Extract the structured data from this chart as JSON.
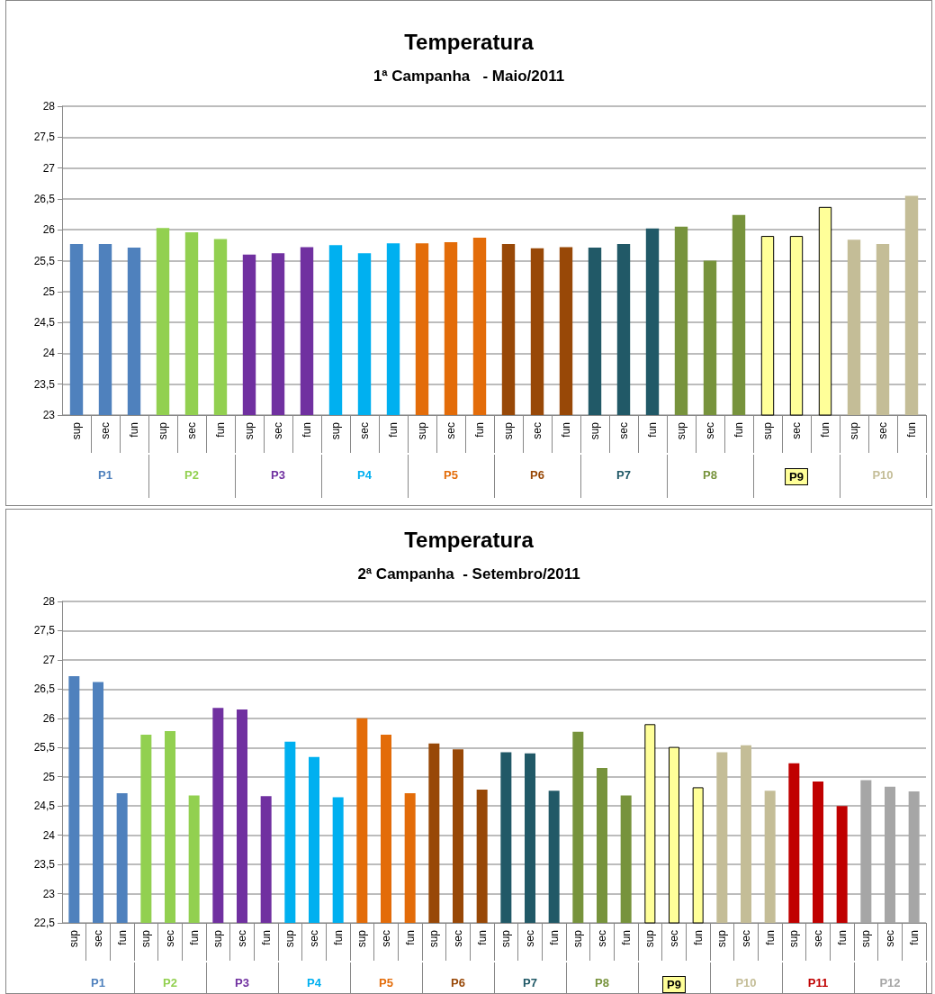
{
  "chart_data": [
    {
      "type": "bar",
      "title": "Temperatura",
      "subtitle": "1ª Campanha   - Maio/2011",
      "categories": [
        "sup",
        "sec",
        "fun",
        "sup",
        "sec",
        "fun",
        "sup",
        "sec",
        "fun",
        "sup",
        "sec",
        "fun",
        "sup",
        "sec",
        "fun",
        "sup",
        "sec",
        "fun",
        "sup",
        "sec",
        "fun",
        "sup",
        "sec",
        "fun",
        "sup",
        "sec",
        "fun",
        "sup",
        "sec",
        "fun"
      ],
      "series": [
        {
          "name": "P1",
          "color": "#4f81bd",
          "values": [
            25.77,
            25.77,
            25.71,
            null,
            null,
            null,
            null,
            null,
            null,
            null,
            null,
            null,
            null,
            null,
            null,
            null,
            null,
            null,
            null,
            null,
            null,
            null,
            null,
            null,
            null,
            null,
            null,
            null,
            null,
            null
          ]
        },
        {
          "name": "P2",
          "color": "#92d050",
          "values": [
            null,
            null,
            null,
            26.03,
            25.96,
            25.85,
            null,
            null,
            null,
            null,
            null,
            null,
            null,
            null,
            null,
            null,
            null,
            null,
            null,
            null,
            null,
            null,
            null,
            null,
            null,
            null,
            null,
            null,
            null,
            null
          ]
        },
        {
          "name": "P3",
          "color": "#7030a0",
          "values": [
            null,
            null,
            null,
            null,
            null,
            null,
            25.6,
            25.62,
            25.72,
            null,
            null,
            null,
            null,
            null,
            null,
            null,
            null,
            null,
            null,
            null,
            null,
            null,
            null,
            null,
            null,
            null,
            null,
            null,
            null,
            null
          ]
        },
        {
          "name": "P4",
          "color": "#00b0f0",
          "values": [
            null,
            null,
            null,
            null,
            null,
            null,
            null,
            null,
            null,
            25.75,
            25.62,
            25.78,
            null,
            null,
            null,
            null,
            null,
            null,
            null,
            null,
            null,
            null,
            null,
            null,
            null,
            null,
            null,
            null,
            null,
            null
          ]
        },
        {
          "name": "P5",
          "color": "#e36c09",
          "values": [
            null,
            null,
            null,
            null,
            null,
            null,
            null,
            null,
            null,
            null,
            null,
            null,
            25.78,
            25.8,
            25.87,
            null,
            null,
            null,
            null,
            null,
            null,
            null,
            null,
            null,
            null,
            null,
            null,
            null,
            null,
            null
          ]
        },
        {
          "name": "P6",
          "color": "#984807",
          "values": [
            null,
            null,
            null,
            null,
            null,
            null,
            null,
            null,
            null,
            null,
            null,
            null,
            null,
            null,
            null,
            25.77,
            25.7,
            25.72,
            null,
            null,
            null,
            null,
            null,
            null,
            null,
            null,
            null,
            null,
            null,
            null
          ]
        },
        {
          "name": "P7",
          "color": "#215967",
          "values": [
            null,
            null,
            null,
            null,
            null,
            null,
            null,
            null,
            null,
            null,
            null,
            null,
            null,
            null,
            null,
            null,
            null,
            null,
            25.71,
            25.77,
            26.02,
            null,
            null,
            null,
            null,
            null,
            null,
            null,
            null,
            null
          ]
        },
        {
          "name": "P8",
          "color": "#77933c",
          "values": [
            null,
            null,
            null,
            null,
            null,
            null,
            null,
            null,
            null,
            null,
            null,
            null,
            null,
            null,
            null,
            null,
            null,
            null,
            null,
            null,
            null,
            26.05,
            25.5,
            26.24,
            null,
            null,
            null,
            null,
            null,
            null
          ]
        },
        {
          "name": "P9",
          "color": "#ffff99",
          "values": [
            null,
            null,
            null,
            null,
            null,
            null,
            null,
            null,
            null,
            null,
            null,
            null,
            null,
            null,
            null,
            null,
            null,
            null,
            null,
            null,
            null,
            null,
            null,
            null,
            25.9,
            25.9,
            26.37,
            null,
            null,
            null
          ]
        },
        {
          "name": "P10",
          "color": "#c4bd97",
          "values": [
            null,
            null,
            null,
            null,
            null,
            null,
            null,
            null,
            null,
            null,
            null,
            null,
            null,
            null,
            null,
            null,
            null,
            null,
            null,
            null,
            null,
            null,
            null,
            null,
            null,
            null,
            null,
            25.84,
            25.77,
            26.55
          ]
        }
      ],
      "ylim": [
        23,
        28
      ],
      "yticks": [
        23,
        {
          "value": 23.5,
          "label": "23,5"
        },
        24,
        {
          "value": 24.5,
          "label": "24,5"
        },
        25,
        {
          "value": 25.5,
          "label": "25,5"
        },
        26,
        {
          "value": 26.5,
          "label": "26,5"
        },
        27,
        {
          "value": 27.5,
          "label": "27,5"
        },
        28
      ],
      "grid": "y",
      "legend": false
    },
    {
      "type": "bar",
      "title": "Temperatura",
      "subtitle": "2ª Campanha  - Setembro/2011",
      "categories": [
        "sup",
        "sec",
        "fun",
        "sup",
        "sec",
        "fun",
        "sup",
        "sec",
        "fun",
        "sup",
        "sec",
        "fun",
        "sup",
        "sec",
        "fun",
        "sup",
        "sec",
        "fun",
        "sup",
        "sec",
        "fun",
        "sup",
        "sec",
        "fun",
        "sup",
        "sec",
        "fun",
        "sup",
        "sec",
        "fun",
        "sup",
        "sec",
        "fun",
        "sup",
        "sec",
        "fun"
      ],
      "series": [
        {
          "name": "P1",
          "color": "#4f81bd",
          "values": [
            26.72,
            26.62,
            24.72,
            null,
            null,
            null,
            null,
            null,
            null,
            null,
            null,
            null,
            null,
            null,
            null,
            null,
            null,
            null,
            null,
            null,
            null,
            null,
            null,
            null,
            null,
            null,
            null,
            null,
            null,
            null,
            null,
            null,
            null,
            null,
            null,
            null
          ]
        },
        {
          "name": "P2",
          "color": "#92d050",
          "values": [
            null,
            null,
            null,
            25.72,
            25.78,
            24.68,
            null,
            null,
            null,
            null,
            null,
            null,
            null,
            null,
            null,
            null,
            null,
            null,
            null,
            null,
            null,
            null,
            null,
            null,
            null,
            null,
            null,
            null,
            null,
            null,
            null,
            null,
            null,
            null,
            null,
            null
          ]
        },
        {
          "name": "P3",
          "color": "#7030a0",
          "values": [
            null,
            null,
            null,
            null,
            null,
            null,
            26.18,
            26.15,
            24.67,
            null,
            null,
            null,
            null,
            null,
            null,
            null,
            null,
            null,
            null,
            null,
            null,
            null,
            null,
            null,
            null,
            null,
            null,
            null,
            null,
            null,
            null,
            null,
            null,
            null,
            null,
            null
          ]
        },
        {
          "name": "P4",
          "color": "#00b0f0",
          "values": [
            null,
            null,
            null,
            null,
            null,
            null,
            null,
            null,
            null,
            25.6,
            25.34,
            24.65,
            null,
            null,
            null,
            null,
            null,
            null,
            null,
            null,
            null,
            null,
            null,
            null,
            null,
            null,
            null,
            null,
            null,
            null,
            null,
            null,
            null,
            null,
            null,
            null
          ]
        },
        {
          "name": "P5",
          "color": "#e36c09",
          "values": [
            null,
            null,
            null,
            null,
            null,
            null,
            null,
            null,
            null,
            null,
            null,
            null,
            26.0,
            25.72,
            24.72,
            null,
            null,
            null,
            null,
            null,
            null,
            null,
            null,
            null,
            null,
            null,
            null,
            null,
            null,
            null,
            null,
            null,
            null,
            null,
            null,
            null
          ]
        },
        {
          "name": "P6",
          "color": "#984807",
          "values": [
            null,
            null,
            null,
            null,
            null,
            null,
            null,
            null,
            null,
            null,
            null,
            null,
            null,
            null,
            null,
            25.57,
            25.47,
            24.78,
            null,
            null,
            null,
            null,
            null,
            null,
            null,
            null,
            null,
            null,
            null,
            null,
            null,
            null,
            null,
            null,
            null,
            null
          ]
        },
        {
          "name": "P7",
          "color": "#215967",
          "values": [
            null,
            null,
            null,
            null,
            null,
            null,
            null,
            null,
            null,
            null,
            null,
            null,
            null,
            null,
            null,
            null,
            null,
            null,
            25.42,
            25.4,
            24.76,
            null,
            null,
            null,
            null,
            null,
            null,
            null,
            null,
            null,
            null,
            null,
            null,
            null,
            null,
            null
          ]
        },
        {
          "name": "P8",
          "color": "#77933c",
          "values": [
            null,
            null,
            null,
            null,
            null,
            null,
            null,
            null,
            null,
            null,
            null,
            null,
            null,
            null,
            null,
            null,
            null,
            null,
            null,
            null,
            null,
            25.77,
            25.15,
            24.68,
            null,
            null,
            null,
            null,
            null,
            null,
            null,
            null,
            null,
            null,
            null,
            null
          ]
        },
        {
          "name": "P9",
          "color": "#ffff99",
          "values": [
            null,
            null,
            null,
            null,
            null,
            null,
            null,
            null,
            null,
            null,
            null,
            null,
            null,
            null,
            null,
            null,
            null,
            null,
            null,
            null,
            null,
            null,
            null,
            null,
            25.9,
            25.51,
            24.82,
            null,
            null,
            null,
            null,
            null,
            null,
            null,
            null,
            null
          ]
        },
        {
          "name": "P10",
          "color": "#c4bd97",
          "values": [
            null,
            null,
            null,
            null,
            null,
            null,
            null,
            null,
            null,
            null,
            null,
            null,
            null,
            null,
            null,
            null,
            null,
            null,
            null,
            null,
            null,
            null,
            null,
            null,
            null,
            null,
            null,
            25.42,
            25.54,
            24.76,
            null,
            null,
            null,
            null,
            null,
            null
          ]
        },
        {
          "name": "P11",
          "color": "#c00000",
          "values": [
            null,
            null,
            null,
            null,
            null,
            null,
            null,
            null,
            null,
            null,
            null,
            null,
            null,
            null,
            null,
            null,
            null,
            null,
            null,
            null,
            null,
            null,
            null,
            null,
            null,
            null,
            null,
            null,
            null,
            null,
            25.23,
            24.92,
            24.5,
            null,
            null,
            null
          ]
        },
        {
          "name": "P12",
          "color": "#a6a6a6",
          "values": [
            null,
            null,
            null,
            null,
            null,
            null,
            null,
            null,
            null,
            null,
            null,
            null,
            null,
            null,
            null,
            null,
            null,
            null,
            null,
            null,
            null,
            null,
            null,
            null,
            null,
            null,
            null,
            null,
            null,
            null,
            null,
            null,
            null,
            24.94,
            24.83,
            24.75
          ]
        }
      ],
      "ylim": [
        22.5,
        28
      ],
      "yticks": [
        {
          "value": 22.5,
          "label": "22,5"
        },
        23,
        {
          "value": 23.5,
          "label": "23,5"
        },
        24,
        {
          "value": 24.5,
          "label": "24,5"
        },
        25,
        {
          "value": 25.5,
          "label": "25,5"
        },
        26,
        {
          "value": 26.5,
          "label": "26,5"
        },
        27,
        {
          "value": 27.5,
          "label": "27,5"
        },
        28
      ],
      "grid": "y",
      "legend": false
    }
  ]
}
